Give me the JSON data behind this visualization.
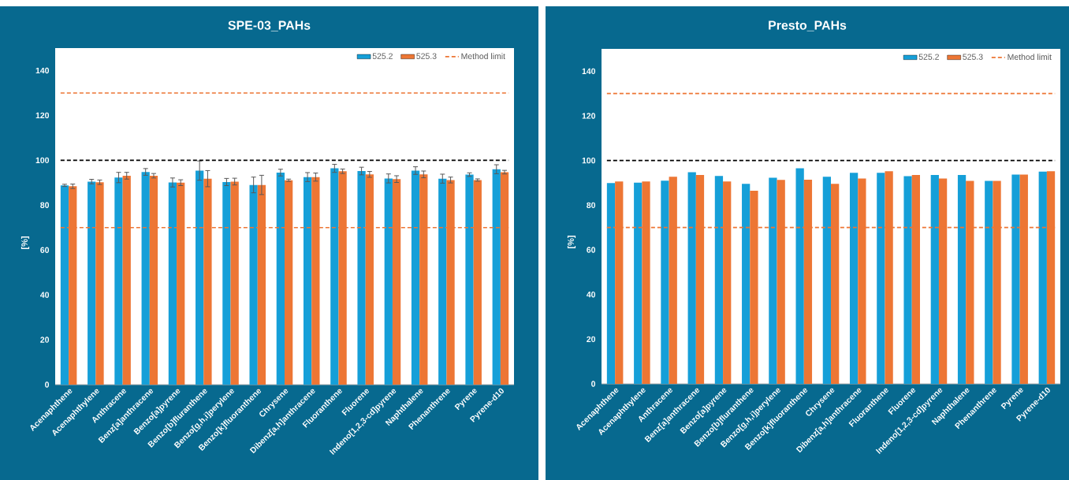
{
  "chart_data": [
    {
      "type": "bar",
      "title": "SPE-03_PAHs",
      "ylabel": "[%]",
      "categories": [
        "Acenaphthene",
        "Acenaphthylene",
        "Anthracene",
        "Benz[a]anthracene",
        "Benzo[a]pyrene",
        "Benzo[b]fluranthene",
        "Benzo[g,h,i]perylene",
        "Benzo[k]fluoranthene",
        "Chrysene",
        "Dibenz[a,h]anthracene",
        "Fluoranthene",
        "Fluorene",
        "Indeno[1,2,3-cd]pyrene",
        "Naphthalene",
        "Phenanthrene",
        "Pyrene",
        "Pyrene-d10"
      ],
      "series": [
        {
          "name": "525.2",
          "color": "#159fd8",
          "values": [
            88.8,
            90.5,
            92.3,
            94.8,
            90.1,
            95.4,
            90.3,
            89.0,
            94.5,
            92.5,
            96.4,
            95.2,
            91.9,
            95.4,
            91.8,
            93.6,
            96.0
          ],
          "errors": [
            0.5,
            1.0,
            2.3,
            1.5,
            2.0,
            4.3,
            1.6,
            3.5,
            1.5,
            2.0,
            1.8,
            1.7,
            2.0,
            1.7,
            2.0,
            0.8,
            2.0
          ]
        },
        {
          "name": "525.3",
          "color": "#ed7634",
          "values": [
            88.4,
            90.2,
            93.1,
            93.1,
            90.0,
            91.8,
            90.5,
            89.0,
            91.1,
            92.5,
            95.1,
            93.7,
            91.6,
            93.7,
            91.2,
            91.2,
            94.7
          ],
          "errors": [
            1.0,
            1.0,
            1.5,
            1.0,
            1.3,
            3.6,
            1.5,
            4.3,
            0.5,
            1.8,
            1.0,
            1.3,
            1.5,
            1.5,
            1.3,
            0.5,
            0.8
          ]
        }
      ],
      "ylim": [
        0,
        150
      ],
      "yticks": [
        0,
        20,
        40,
        60,
        80,
        100,
        120,
        140
      ],
      "ref_lines": [
        {
          "axis": "y",
          "value": 130,
          "label": "Method limit",
          "color": "#ed7634",
          "line_style": "dashed"
        },
        {
          "axis": "y",
          "value": 70,
          "color": "#ed7634",
          "line_style": "dashed"
        },
        {
          "axis": "y",
          "value": 100,
          "color": "#000000",
          "line_style": "dashed"
        }
      ],
      "legend": "top right"
    },
    {
      "type": "bar",
      "title": "Presto_PAHs",
      "ylabel": "[%]",
      "categories": [
        "Acenaphthene",
        "Acenaphthylene",
        "Anthracene",
        "Benz[a]anthracene",
        "Benzo[a]pyrene",
        "Benzo[b]fluranthene",
        "Benzo[g,h,i]perylene",
        "Benzo[k]fluoranthene",
        "Chrysene",
        "Dibenz[a,h]anthracene",
        "Fluoranthene",
        "Fluorene",
        "Indeno[1,2,3-cd]pyrene",
        "Naphthalene",
        "Phenanthrene",
        "Pyrene",
        "Pyrene-d10"
      ],
      "series": [
        {
          "name": "525.2",
          "color": "#159fd8",
          "values": [
            89.9,
            90.1,
            91.0,
            94.8,
            93.1,
            89.6,
            92.3,
            96.5,
            92.7,
            94.5,
            94.5,
            93.0,
            93.5,
            93.5,
            90.9,
            93.7,
            95.0
          ]
        },
        {
          "name": "525.3",
          "color": "#ed7634",
          "values": [
            90.6,
            90.6,
            92.7,
            93.5,
            90.6,
            86.5,
            91.3,
            91.4,
            89.6,
            91.9,
            95.2,
            93.5,
            91.9,
            90.9,
            90.9,
            93.7,
            95.2
          ]
        }
      ],
      "ylim": [
        0,
        150
      ],
      "yticks": [
        0,
        20,
        40,
        60,
        80,
        100,
        120,
        140
      ],
      "ref_lines": [
        {
          "axis": "y",
          "value": 130,
          "label": "Method limit",
          "color": "#ed7634",
          "line_style": "dashed"
        },
        {
          "axis": "y",
          "value": 70,
          "color": "#ed7634",
          "line_style": "dashed"
        },
        {
          "axis": "y",
          "value": 100,
          "color": "#000000",
          "line_style": "dashed"
        }
      ],
      "legend": "top right"
    }
  ]
}
